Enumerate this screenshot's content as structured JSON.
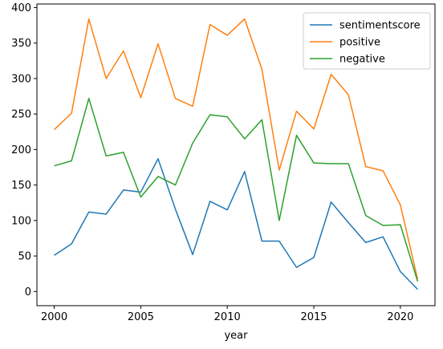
{
  "chart_data": {
    "type": "line",
    "xlabel": "year",
    "ylabel": "",
    "title": "",
    "xlim": [
      1999,
      2022
    ],
    "ylim": [
      -20,
      405
    ],
    "xticks": [
      2000,
      2005,
      2010,
      2015,
      2020
    ],
    "yticks": [
      0,
      50,
      100,
      150,
      200,
      250,
      300,
      350,
      400
    ],
    "x": [
      2000,
      2001,
      2002,
      2003,
      2004,
      2005,
      2006,
      2007,
      2008,
      2009,
      2010,
      2011,
      2012,
      2013,
      2014,
      2015,
      2016,
      2017,
      2018,
      2019,
      2020,
      2021
    ],
    "grid": false,
    "legend_position": "top-right",
    "series": [
      {
        "name": "sentimentscore",
        "color": "#1f77b4",
        "values": [
          51,
          67,
          112,
          109,
          143,
          140,
          187,
          116,
          52,
          127,
          115,
          169,
          71,
          71,
          34,
          48,
          126,
          97,
          69,
          77,
          28,
          3
        ]
      },
      {
        "name": "positive",
        "color": "#ff7f0e",
        "values": [
          228,
          251,
          384,
          300,
          339,
          273,
          349,
          272,
          261,
          376,
          361,
          384,
          313,
          171,
          254,
          229,
          306,
          277,
          176,
          170,
          122,
          17
        ]
      },
      {
        "name": "negative",
        "color": "#2ca02c",
        "values": [
          177,
          184,
          272,
          191,
          196,
          133,
          162,
          150,
          209,
          249,
          246,
          215,
          242,
          100,
          220,
          181,
          180,
          180,
          107,
          93,
          94,
          14
        ]
      }
    ]
  }
}
